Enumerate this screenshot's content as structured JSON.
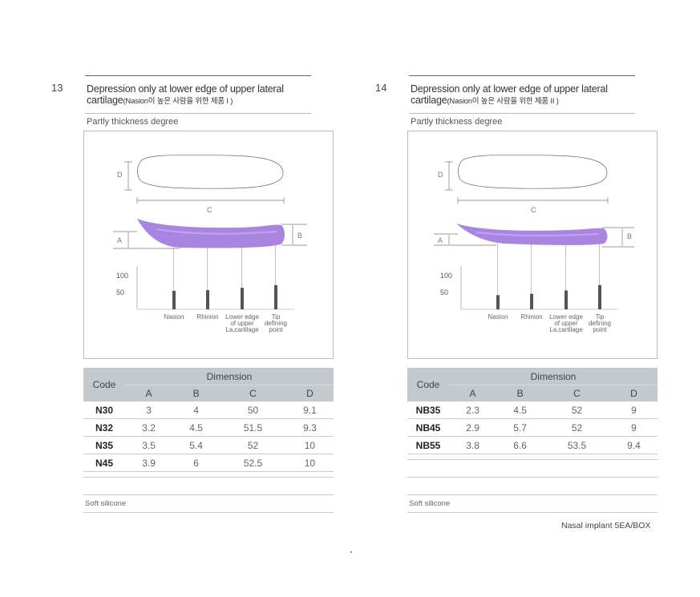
{
  "panels": [
    {
      "number": "13",
      "title_line1": "Depression only at lower edge of upper lateral",
      "title_line2_en": "cartilage",
      "title_line2_paren_en": "(Nasion",
      "title_line2_ko": "이 높은 사람을 위한 제품 I )",
      "subtitle": "Partly thickness degree",
      "diagram_labels": {
        "d": "D",
        "c": "C",
        "a": "A",
        "b": "B"
      },
      "chart_data": {
        "type": "bar",
        "categories": [
          "Nasion",
          "Rhinion",
          "Lower edge of upper La,cartilage",
          "Tip defining point"
        ],
        "category_lines": [
          [
            "Nasion"
          ],
          [
            "Rhinion"
          ],
          [
            "Lower edge",
            "of upper",
            "La,cartilage"
          ],
          [
            "Tip",
            "defining",
            "point"
          ]
        ],
        "values": [
          55,
          57,
          64,
          72
        ],
        "yticks": [
          100,
          50
        ],
        "ylim": [
          0,
          150
        ]
      },
      "table": {
        "code_header": "Code",
        "dimension_header": "Dimension",
        "columns": [
          "A",
          "B",
          "C",
          "D"
        ],
        "rows": [
          {
            "code": "N30",
            "values": [
              "3",
              "4",
              "50",
              "9.1"
            ]
          },
          {
            "code": "N32",
            "values": [
              "3.2",
              "4.5",
              "51.5",
              "9.3"
            ]
          },
          {
            "code": "N35",
            "values": [
              "3.5",
              "5.4",
              "52",
              "10"
            ]
          },
          {
            "code": "N45",
            "values": [
              "3.9",
              "6",
              "52.5",
              "10"
            ]
          }
        ]
      },
      "material": "Soft silicone",
      "colors": {
        "implant": "#9b6fdc",
        "bar": "#555555",
        "header": "#c4c9cf"
      }
    },
    {
      "number": "14",
      "title_line1": "Depression only at lower edge of upper lateral",
      "title_line2_en": "cartilage",
      "title_line2_paren_en": "(Nasion",
      "title_line2_ko": "이 높은 사람을 위한 제품 II )",
      "subtitle": "Partly thickness degree",
      "diagram_labels": {
        "d": "D",
        "c": "C",
        "a": "A",
        "b": "B"
      },
      "chart_data": {
        "type": "bar",
        "categories": [
          "Nasion",
          "Rhinion",
          "Lower edge of upper La,cartilage",
          "Tip defining point"
        ],
        "category_lines": [
          [
            "Nasion"
          ],
          [
            "Rhinion"
          ],
          [
            "Lower edge",
            "of upper",
            "La,cartilage"
          ],
          [
            "Tip",
            "defining",
            "point"
          ]
        ],
        "values": [
          42,
          46,
          56,
          72
        ],
        "yticks": [
          100,
          50
        ],
        "ylim": [
          0,
          150
        ]
      },
      "table": {
        "code_header": "Code",
        "dimension_header": "Dimension",
        "columns": [
          "A",
          "B",
          "C",
          "D"
        ],
        "rows": [
          {
            "code": "NB35",
            "values": [
              "2.3",
              "4.5",
              "52",
              "9"
            ]
          },
          {
            "code": "NB45",
            "values": [
              "2.9",
              "5.7",
              "52",
              "9"
            ]
          },
          {
            "code": "NB55",
            "values": [
              "3.8",
              "6.6",
              "53.5",
              "9.4"
            ]
          }
        ]
      },
      "material": "Soft silicone",
      "colors": {
        "implant": "#9b6fdc",
        "bar": "#555555",
        "header": "#c4c9cf"
      }
    }
  ],
  "footer": {
    "note": "Nasal implant  5EA/BOX"
  }
}
